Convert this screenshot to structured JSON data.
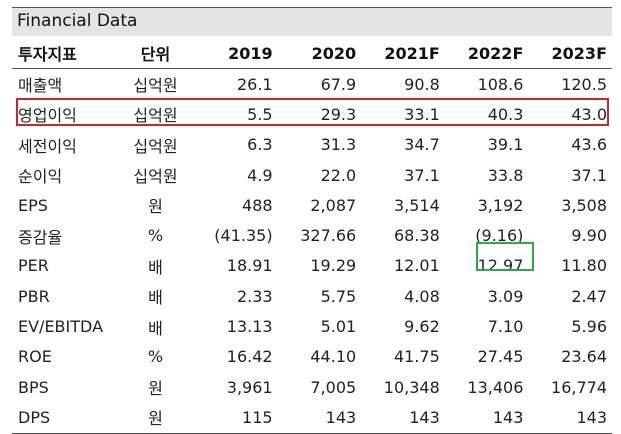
{
  "title": "Financial Data",
  "header": {
    "item": "투자지표",
    "unit": "단위",
    "years": [
      "2019",
      "2020",
      "2021F",
      "2022F",
      "2023F"
    ]
  },
  "rows": [
    {
      "item": "매출액",
      "unit": "십억원",
      "values": [
        "26.1",
        "67.9",
        "90.8",
        "108.6",
        "120.5"
      ]
    },
    {
      "item": "영업이익",
      "unit": "십억원",
      "values": [
        "5.5",
        "29.3",
        "33.1",
        "40.3",
        "43.0"
      ]
    },
    {
      "item": "세전이익",
      "unit": "십억원",
      "values": [
        "6.3",
        "31.3",
        "34.7",
        "39.1",
        "43.6"
      ]
    },
    {
      "item": "순이익",
      "unit": "십억원",
      "values": [
        "4.9",
        "22.0",
        "37.1",
        "33.8",
        "37.1"
      ]
    },
    {
      "item": "EPS",
      "unit": "원",
      "values": [
        "488",
        "2,087",
        "3,514",
        "3,192",
        "3,508"
      ]
    },
    {
      "item": "증감율",
      "unit": "%",
      "values": [
        "(41.35)",
        "327.66",
        "68.38",
        "(9.16)",
        "9.90"
      ]
    },
    {
      "item": "PER",
      "unit": "배",
      "values": [
        "18.91",
        "19.29",
        "12.01",
        "12.97",
        "11.80"
      ]
    },
    {
      "item": "PBR",
      "unit": "배",
      "values": [
        "2.33",
        "5.75",
        "4.08",
        "3.09",
        "2.47"
      ]
    },
    {
      "item": "EV/EBITDA",
      "unit": "배",
      "values": [
        "13.13",
        "5.01",
        "9.62",
        "7.10",
        "5.96"
      ]
    },
    {
      "item": "ROE",
      "unit": "%",
      "values": [
        "16.42",
        "44.10",
        "41.75",
        "27.45",
        "23.64"
      ]
    },
    {
      "item": "BPS",
      "unit": "원",
      "values": [
        "3,961",
        "7,005",
        "10,348",
        "13,406",
        "16,774"
      ]
    },
    {
      "item": "DPS",
      "unit": "원",
      "values": [
        "115",
        "143",
        "143",
        "143",
        "143"
      ]
    }
  ],
  "highlights": {
    "row_box_color": "#c8282d",
    "cell_box_color": "#2aa84a"
  }
}
